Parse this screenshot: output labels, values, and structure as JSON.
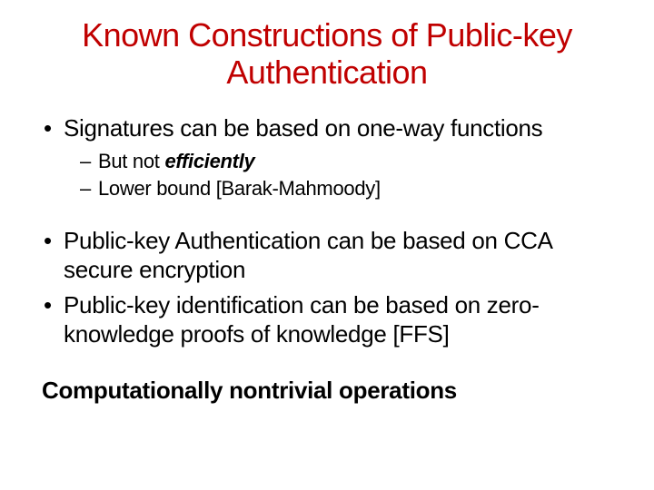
{
  "title_color": "#c00000",
  "text_color": "#000000",
  "background_color": "#ffffff",
  "title": "Known Constructions of Public-key Authentication",
  "bullets": [
    {
      "text": "Signatures can be based on one-way functions",
      "sub": [
        {
          "prefix": "But not ",
          "emph": "efficiently"
        },
        {
          "text": "Lower bound [Barak-Mahmoody]"
        }
      ]
    },
    {
      "text": "Public-key Authentication can be based on CCA secure encryption"
    },
    {
      "text": "Public-key identification can be based on zero-knowledge proofs of knowledge [FFS]"
    }
  ],
  "footer": "Computationally nontrivial operations"
}
